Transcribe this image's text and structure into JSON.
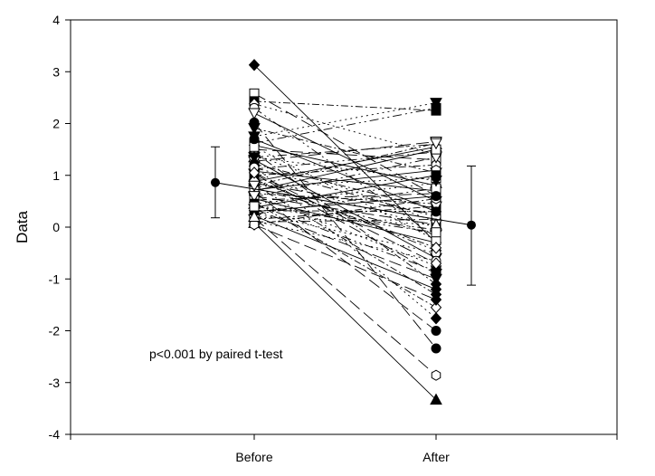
{
  "chart_data": {
    "type": "scatter",
    "ylabel": "Data",
    "xlabel": "",
    "categories": [
      "Before",
      "After"
    ],
    "ylim": [
      -4,
      4
    ],
    "yticks": [
      "4",
      "3",
      "2",
      "1",
      "0",
      "-1",
      "-2",
      "-3",
      "-4"
    ],
    "grid": false,
    "annotation": "p<0.001 by paired t-test",
    "summary": [
      {
        "category": "Before",
        "mean": 0.86,
        "error_low": 0.18,
        "error_high": 1.55
      },
      {
        "category": "After",
        "mean": 0.04,
        "error_low": -1.12,
        "error_high": 1.18
      }
    ],
    "pairs": [
      [
        3.13,
        -0.3
      ],
      [
        2.58,
        0.6
      ],
      [
        2.43,
        2.25
      ],
      [
        2.38,
        1.4
      ],
      [
        2.3,
        -0.2
      ],
      [
        2.2,
        0.5
      ],
      [
        2.02,
        -2.34
      ],
      [
        1.91,
        1.05
      ],
      [
        1.75,
        2.4
      ],
      [
        1.62,
        2.3
      ],
      [
        1.58,
        0.8
      ],
      [
        1.5,
        1.3
      ],
      [
        1.45,
        -1.1
      ],
      [
        1.4,
        0.1
      ],
      [
        1.35,
        1.6
      ],
      [
        1.3,
        -0.6
      ],
      [
        1.27,
        1.65
      ],
      [
        1.22,
        0.35
      ],
      [
        1.18,
        -1.76
      ],
      [
        1.12,
        1.45
      ],
      [
        1.08,
        0.7
      ],
      [
        1.03,
        -0.9
      ],
      [
        1.0,
        1.2
      ],
      [
        0.96,
        0.0
      ],
      [
        0.92,
        -0.45
      ],
      [
        0.88,
        1.55
      ],
      [
        0.85,
        0.25
      ],
      [
        0.82,
        -1.3
      ],
      [
        0.78,
        0.95
      ],
      [
        0.75,
        -0.15
      ],
      [
        0.72,
        1.1
      ],
      [
        0.68,
        -2.0
      ],
      [
        0.65,
        0.45
      ],
      [
        0.62,
        -0.75
      ],
      [
        0.58,
        1.35
      ],
      [
        0.55,
        -0.3
      ],
      [
        0.52,
        0.65
      ],
      [
        0.48,
        -1.55
      ],
      [
        0.45,
        0.85
      ],
      [
        0.42,
        -0.05
      ],
      [
        0.38,
        1.0
      ],
      [
        0.35,
        -1.0
      ],
      [
        0.32,
        0.3
      ],
      [
        0.28,
        -0.5
      ],
      [
        0.25,
        0.75
      ],
      [
        0.22,
        -1.2
      ],
      [
        0.18,
        -2.86
      ],
      [
        0.15,
        0.4
      ],
      [
        0.12,
        -0.65
      ],
      [
        0.1,
        0.15
      ],
      [
        0.08,
        -3.33
      ],
      [
        0.05,
        -1.4
      ],
      [
        0.05,
        0.55
      ],
      [
        1.55,
        -0.25
      ],
      [
        1.15,
        0.2
      ],
      [
        0.7,
        1.5
      ],
      [
        0.6,
        0.05
      ],
      [
        0.9,
        -0.4
      ],
      [
        1.35,
        0.9
      ],
      [
        0.45,
        -0.85
      ],
      [
        0.3,
        0.6
      ],
      [
        1.05,
        -0.7
      ],
      [
        0.8,
        1.62
      ],
      [
        0.2,
        0.05
      ],
      [
        0.4,
        -0.1
      ],
      [
        1.7,
        0.3
      ]
    ],
    "pair_markers": [
      "diamond",
      "square-open",
      "square",
      "diamond-open",
      "circle-open",
      "triangle-down-open",
      "circle",
      "triangle-down",
      "triangle-down",
      "square",
      "diamond-open",
      "square-open",
      "diamond",
      "circle-open",
      "triangle-open",
      "triangle-down",
      "triangle-down-open",
      "circle",
      "diamond",
      "square-open",
      "hexagon-open",
      "triangle-down",
      "circle-open",
      "square",
      "diamond-open",
      "triangle-open",
      "circle",
      "diamond",
      "square-open",
      "triangle-down",
      "hexagon-open",
      "circle",
      "square",
      "diamond-open",
      "triangle-down-open",
      "circle-open",
      "square-open",
      "diamond-open",
      "triangle-open",
      "circle",
      "square",
      "triangle-down",
      "diamond-open",
      "circle-open",
      "square-open",
      "diamond",
      "hexagon-open",
      "triangle-down-open",
      "circle-open",
      "square",
      "triangle",
      "diamond",
      "hexagon-open",
      "square-open",
      "circle-open",
      "square-open",
      "triangle-down-open",
      "diamond-open",
      "triangle-down",
      "square",
      "circle",
      "diamond-open",
      "triangle-down-open",
      "triangle-open",
      "square-open",
      "circle"
    ],
    "pair_dashes": [
      "",
      "14 6",
      "8 3 2 3",
      "2 4",
      "10 4 2 4 2 4"
    ]
  }
}
